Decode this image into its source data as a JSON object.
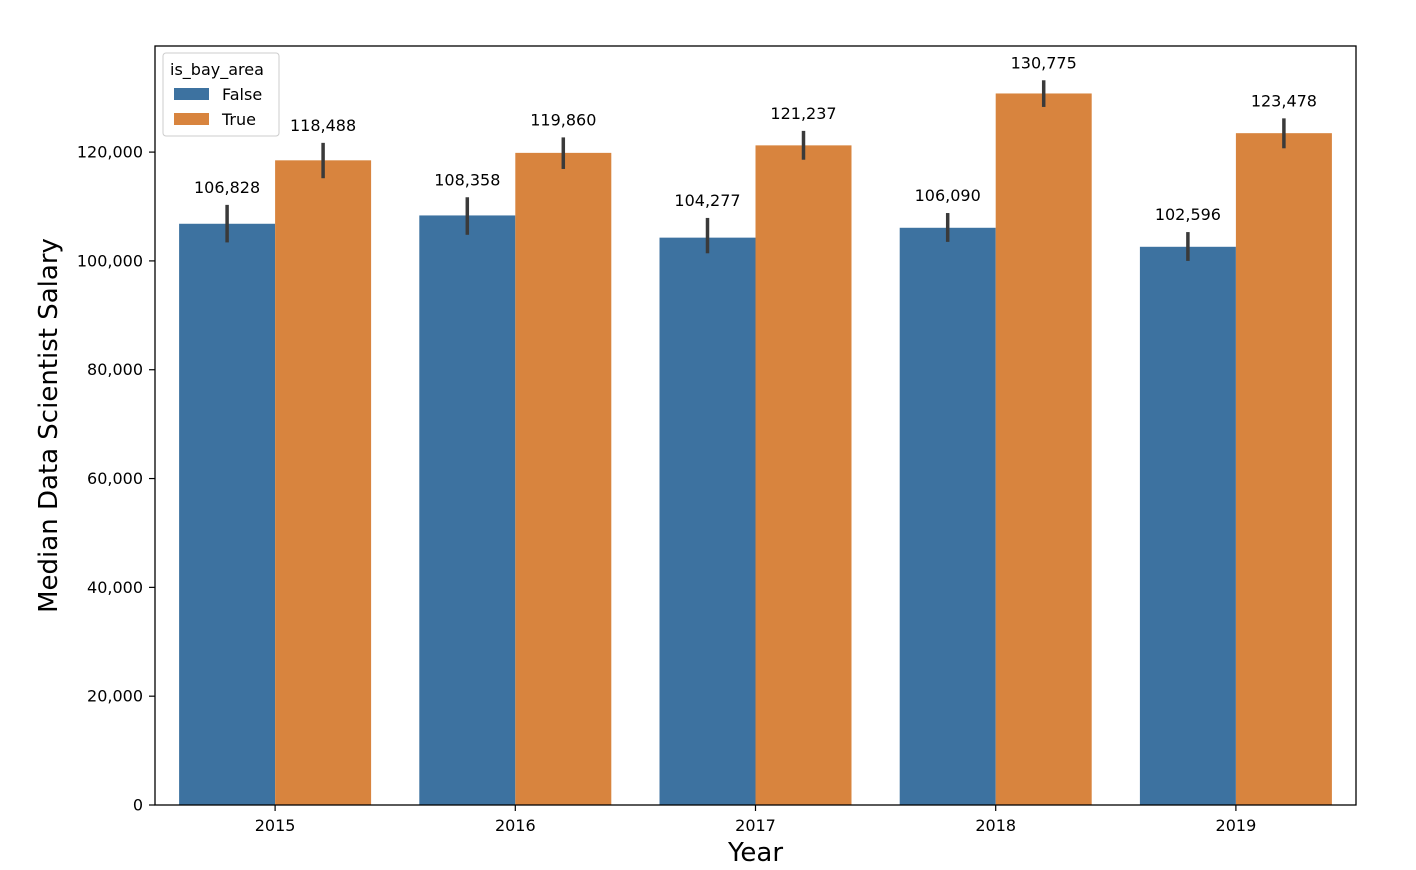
{
  "chart_data": {
    "type": "bar",
    "categories": [
      "2015",
      "2016",
      "2017",
      "2018",
      "2019"
    ],
    "series": [
      {
        "name": "False",
        "color": "#3d72a0",
        "values": [
          106828,
          108358,
          104277,
          106090,
          102596
        ],
        "labels": [
          "106,828",
          "108,358",
          "104,277",
          "106,090",
          "102,596"
        ],
        "ci_low": [
          103400,
          104800,
          101400,
          103500,
          100000
        ],
        "ci_high": [
          110300,
          111700,
          107900,
          108800,
          105300
        ]
      },
      {
        "name": "True",
        "color": "#d8843e",
        "values": [
          118488,
          119860,
          121237,
          130775,
          123478
        ],
        "labels": [
          "118,488",
          "119,860",
          "121,237",
          "130,775",
          "123,478"
        ],
        "ci_low": [
          115200,
          116900,
          118600,
          128300,
          120700
        ],
        "ci_high": [
          121700,
          122700,
          123900,
          133200,
          126200
        ]
      }
    ],
    "title": "",
    "xlabel": "Year",
    "ylabel": "Median Data Scientist Salary",
    "ylim": [
      0,
      139500
    ],
    "yticks": [
      0,
      20000,
      40000,
      60000,
      80000,
      100000,
      120000
    ],
    "ytick_labels": [
      "0",
      "20,000",
      "40,000",
      "60,000",
      "80,000",
      "100,000",
      "120,000"
    ],
    "legend": {
      "title": "is_bay_area",
      "placement": "top-left",
      "entries": [
        "False",
        "True"
      ]
    },
    "grid": false
  }
}
